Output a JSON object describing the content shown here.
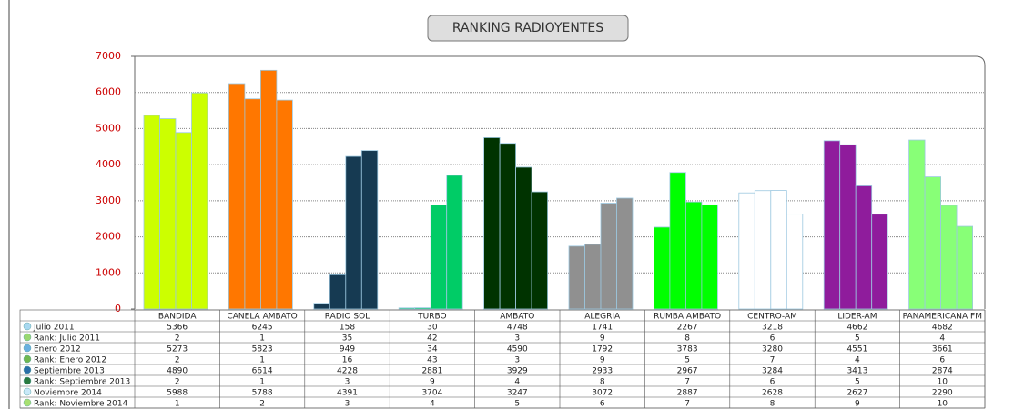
{
  "chart_data": {
    "type": "bar",
    "title": "RANKING RADIOYENTES",
    "categories": [
      "BANDIDA",
      "CANELA AMBATO",
      "RADIO SOL",
      "TURBO",
      "AMBATO",
      "ALEGRIA",
      "RUMBA AMBATO",
      "CENTRO-AM",
      "LIDER-AM",
      "PANAMERICANA FM"
    ],
    "colors": [
      "#ccff00",
      "#ff7700",
      "#163a52",
      "#00cc66",
      "#003300",
      "#909090",
      "#00ff00",
      "#ffffff",
      "#8f1c9c",
      "#88ff77"
    ],
    "series": [
      {
        "name": "Julio 2011",
        "color": "#a8d8f0",
        "values": [
          5366,
          6245,
          158,
          30,
          4748,
          1741,
          2267,
          3218,
          4662,
          4682
        ]
      },
      {
        "name": "Enero 2012",
        "color": "#6ab0e0",
        "values": [
          5273,
          5823,
          949,
          34,
          4590,
          1792,
          3783,
          3280,
          4551,
          3661
        ]
      },
      {
        "name": "Septiembre 2013",
        "color": "#2a6fa8",
        "values": [
          4890,
          6614,
          4228,
          2881,
          3929,
          2933,
          2967,
          3284,
          3413,
          2874
        ]
      },
      {
        "name": "Noviembre 2014",
        "color": "#c8e8f8",
        "values": [
          5988,
          5788,
          4391,
          3704,
          3247,
          3072,
          2887,
          2628,
          2627,
          2290
        ]
      }
    ],
    "rank_rows": [
      {
        "name": "Rank: Julio 2011",
        "color": "#9ad870",
        "values": [
          2,
          1,
          35,
          42,
          3,
          9,
          8,
          6,
          5,
          4
        ]
      },
      {
        "name": "Rank: Enero 2012",
        "color": "#70b850",
        "values": [
          2,
          1,
          16,
          43,
          3,
          9,
          5,
          7,
          4,
          6
        ]
      },
      {
        "name": "Rank: Septiembre 2013",
        "color": "#2a7a40",
        "values": [
          2,
          1,
          3,
          9,
          4,
          8,
          7,
          6,
          5,
          10
        ]
      },
      {
        "name": "Rank: Noviembre 2014",
        "color": "#a8e070",
        "values": [
          1,
          2,
          3,
          4,
          5,
          6,
          7,
          8,
          9,
          10
        ]
      }
    ],
    "ylim": [
      0,
      7000
    ],
    "yticks": [
      0,
      1000,
      2000,
      3000,
      4000,
      5000,
      6000,
      7000
    ],
    "grid": true
  }
}
